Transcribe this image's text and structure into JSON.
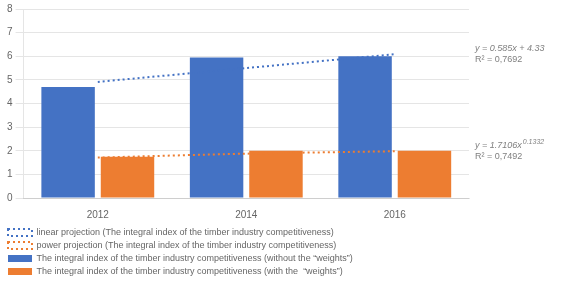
{
  "chart_data": {
    "type": "bar",
    "categories": [
      "2012",
      "2014",
      "2016"
    ],
    "series": [
      {
        "name": "The integral index of the timber industry competitiveness (without the “weights”)",
        "color": "#4472C4",
        "values": [
          4.7,
          5.95,
          6.0
        ]
      },
      {
        "name": "The integral index of the timber industry competitiveness (with the  “weights”)",
        "color": "#ED7D31",
        "values": [
          1.75,
          2.0,
          2.0
        ]
      },
      {
        "name": "linear projection (The integral index of the timber industry competitiveness)",
        "type": "line",
        "line_style": "dotted",
        "color": "#4472C4",
        "values": [
          4.915,
          5.5,
          6.085
        ],
        "annotations": [
          {
            "text": "y = 0.585x + 4.33",
            "color": "#7f7f7f"
          },
          {
            "text": "R² = 0,7692",
            "color": "#7f7f7f"
          }
        ]
      },
      {
        "name": "power projection (The integral index of the timber industry competitiveness)",
        "type": "line",
        "line_style": "dotted",
        "color": "#ED7D31",
        "values": [
          1.7106,
          1.87606,
          1.98016
        ],
        "annotations": [
          {
            "text": "y = 1.7106x",
            "superscript": "0.1332",
            "color": "#7f7f7f"
          },
          {
            "text": "R² = 0,7492",
            "color": "#7f7f7f"
          }
        ]
      }
    ],
    "ylim": [
      0,
      8
    ],
    "yticks": [
      0,
      1,
      2,
      3,
      4,
      5,
      6,
      7,
      8
    ],
    "grid": "y",
    "legend": "bottom"
  }
}
